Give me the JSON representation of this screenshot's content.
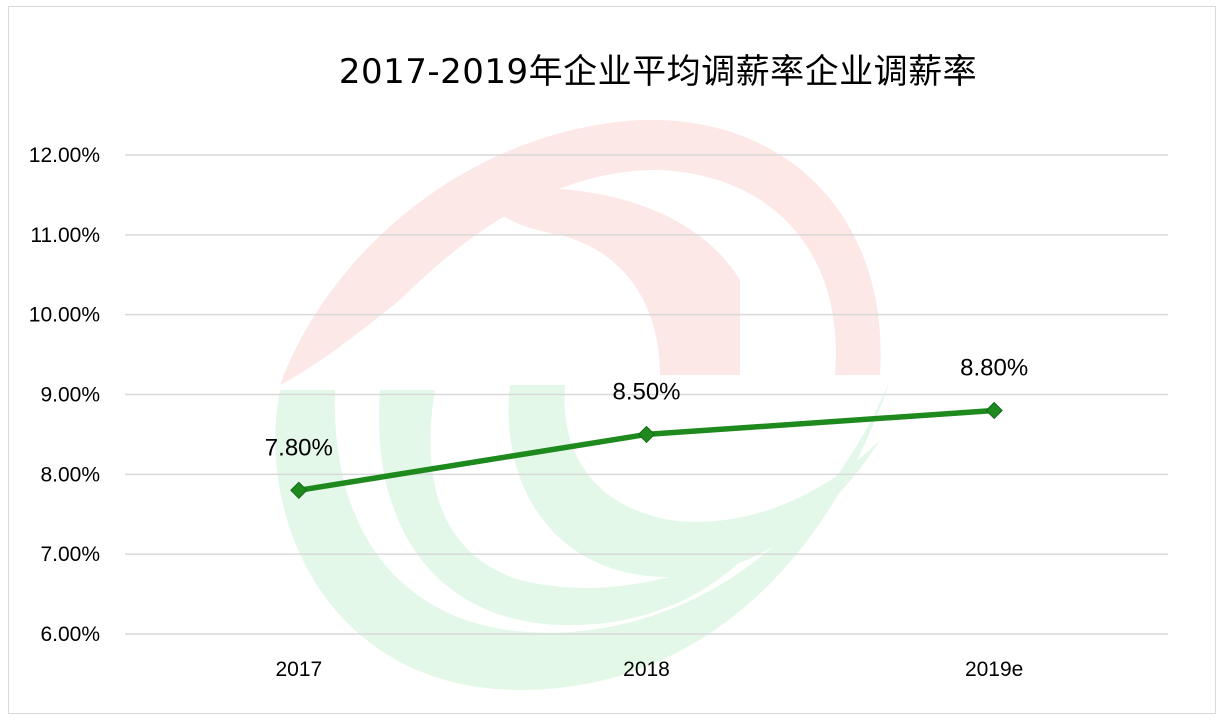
{
  "chart_data": {
    "type": "line",
    "title": "2017-2019年企业平均调薪率企业调薪率",
    "categories": [
      "2017",
      "2018",
      "2019e"
    ],
    "series": [
      {
        "values": [
          7.8,
          8.5,
          8.8
        ],
        "color": "#1e8a1e"
      }
    ],
    "data_labels": [
      "7.80%",
      "8.50%",
      "8.80%"
    ],
    "y_ticks": [
      "6.00%",
      "7.00%",
      "8.00%",
      "9.00%",
      "10.00%",
      "11.00%",
      "12.00%"
    ],
    "ylim": [
      6,
      12
    ],
    "grid": true,
    "gridline_color": "#d9d9d9",
    "marker": "diamond"
  }
}
